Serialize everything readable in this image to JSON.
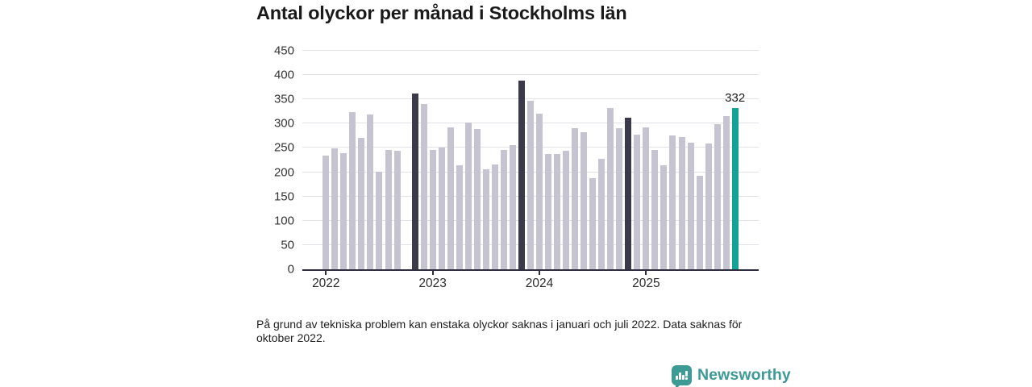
{
  "header": {
    "title": "Antal olyckor per månad i Stockholms län"
  },
  "chart_data": {
    "type": "bar",
    "title": "Antal olyckor per månad i Stockholms län",
    "xlabel": "",
    "ylabel": "",
    "ylim": [
      0,
      450
    ],
    "y_ticks": [
      0,
      50,
      100,
      150,
      200,
      250,
      300,
      350,
      400,
      450
    ],
    "x_year_ticks": [
      "2022",
      "2023",
      "2024",
      "2025"
    ],
    "grid": "horizontal",
    "legend": "none",
    "annotation": {
      "label": "332",
      "point": "2025-11"
    },
    "colors": {
      "bar": "#c5c4d0",
      "highlight_dark": "#3b3a4b",
      "highlight_current": "#14a296",
      "axis": "#2f2e3e",
      "gridline": "#e3e2e9"
    },
    "points": [
      {
        "m": "2022-01",
        "v": 234
      },
      {
        "m": "2022-02",
        "v": 249
      },
      {
        "m": "2022-03",
        "v": 239
      },
      {
        "m": "2022-04",
        "v": 323
      },
      {
        "m": "2022-05",
        "v": 270
      },
      {
        "m": "2022-06",
        "v": 319
      },
      {
        "m": "2022-07",
        "v": 201
      },
      {
        "m": "2022-08",
        "v": 245
      },
      {
        "m": "2022-09",
        "v": 244
      },
      {
        "m": "2022-10",
        "v": null
      },
      {
        "m": "2022-11",
        "v": 362,
        "hl": "dark"
      },
      {
        "m": "2022-12",
        "v": 341
      },
      {
        "m": "2023-01",
        "v": 246
      },
      {
        "m": "2023-02",
        "v": 250
      },
      {
        "m": "2023-03",
        "v": 293
      },
      {
        "m": "2023-04",
        "v": 214
      },
      {
        "m": "2023-05",
        "v": 303
      },
      {
        "m": "2023-06",
        "v": 289
      },
      {
        "m": "2023-07",
        "v": 206
      },
      {
        "m": "2023-08",
        "v": 216
      },
      {
        "m": "2023-09",
        "v": 245
      },
      {
        "m": "2023-10",
        "v": 255
      },
      {
        "m": "2023-11",
        "v": 388,
        "hl": "dark"
      },
      {
        "m": "2023-12",
        "v": 347
      },
      {
        "m": "2024-01",
        "v": 321
      },
      {
        "m": "2024-02",
        "v": 238
      },
      {
        "m": "2024-03",
        "v": 237
      },
      {
        "m": "2024-04",
        "v": 244
      },
      {
        "m": "2024-05",
        "v": 291
      },
      {
        "m": "2024-06",
        "v": 282
      },
      {
        "m": "2024-07",
        "v": 188
      },
      {
        "m": "2024-08",
        "v": 228
      },
      {
        "m": "2024-09",
        "v": 332
      },
      {
        "m": "2024-10",
        "v": 290
      },
      {
        "m": "2024-11",
        "v": 312,
        "hl": "dark"
      },
      {
        "m": "2024-12",
        "v": 278
      },
      {
        "m": "2025-01",
        "v": 292
      },
      {
        "m": "2025-02",
        "v": 246
      },
      {
        "m": "2025-03",
        "v": 215
      },
      {
        "m": "2025-04",
        "v": 275
      },
      {
        "m": "2025-05",
        "v": 273
      },
      {
        "m": "2025-06",
        "v": 260
      },
      {
        "m": "2025-07",
        "v": 193
      },
      {
        "m": "2025-08",
        "v": 259
      },
      {
        "m": "2025-09",
        "v": 299
      },
      {
        "m": "2025-10",
        "v": 316
      },
      {
        "m": "2025-11",
        "v": 332,
        "hl": "current"
      }
    ]
  },
  "footnote": {
    "text": "På grund av tekniska problem kan enstaka olyckor saknas i januari och juli 2022. Data saknas för oktober 2022."
  },
  "branding": {
    "wordmark": "Newsworthy",
    "color": "#3d9a94"
  }
}
